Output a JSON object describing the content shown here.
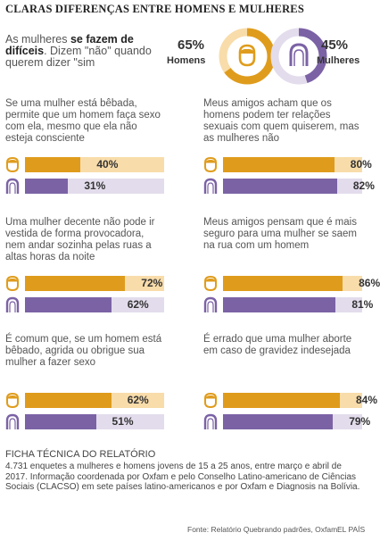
{
  "title": "CLARAS DIFERENÇAS ENTRE HOMENS E MULHERES",
  "intro": {
    "part1": "As mulheres ",
    "bold": "se fazem de difíceis",
    "part2": ". Dizem \"não\" quando querem dizer \"sim"
  },
  "summary": {
    "men": {
      "label": "Homens",
      "value": 65,
      "value_label": "65%"
    },
    "women": {
      "label": "Mulheres",
      "value": 45,
      "value_label": "45%"
    }
  },
  "colors": {
    "men": "#df9c1c",
    "men_track": "#f8dcaa",
    "women": "#7b62a5",
    "women_track": "#e3dcec"
  },
  "icons": {
    "men": "man-head-icon",
    "women": "woman-head-icon"
  },
  "chart_data": {
    "type": "bar",
    "orientation": "horizontal",
    "x_range": [
      0,
      100
    ],
    "series": [
      {
        "name": "Homens",
        "values": [
          40,
          80,
          72,
          86,
          62,
          84
        ]
      },
      {
        "name": "Mulheres",
        "values": [
          31,
          82,
          62,
          81,
          51,
          79
        ]
      }
    ],
    "questions": [
      {
        "text": "Se uma mulher está bêbada, permite que um homem faça sexo com ela, mesmo que ela não esteja consciente",
        "men": 40,
        "men_label": "40%",
        "women": 31,
        "women_label": "31%"
      },
      {
        "text": "Meus amigos acham que os homens podem ter relações sexuais com quem quiserem, mas as mulheres não",
        "men": 80,
        "men_label": "80%",
        "women": 82,
        "women_label": "82%"
      },
      {
        "text": "Uma mulher decente não pode ir vestida de forma provocadora, nem andar sozinha pelas ruas a altas horas da noite",
        "men": 72,
        "men_label": "72%",
        "women": 62,
        "women_label": "62%"
      },
      {
        "text": "Meus amigos pensam que é mais seguro para uma mulher se saem na rua com um homem",
        "men": 86,
        "men_label": "86%",
        "women": 81,
        "women_label": "81%"
      },
      {
        "text": "É comum que, se um homem está bêbado, agrida ou obrigue sua mulher a fazer sexo",
        "men": 62,
        "men_label": "62%",
        "women": 51,
        "women_label": "51%"
      },
      {
        "text": "É errado que uma mulher aborte em caso de gravidez indesejada",
        "men": 84,
        "men_label": "84%",
        "women": 79,
        "women_label": "79%"
      }
    ]
  },
  "footer": {
    "heading": "FICHA TÉCNICA DO RELATÓRIO",
    "text": "4.731 enquetes a mulheres e homens jovens de 15 a 25 anos, entre março e abril de 2017. Informação coordenada por Oxfam e pelo Conselho Latino-americano de Ciências Sociais (CLACSO) em sete países latino-americanos e por Oxfam e Diagnosis na Bolívia.",
    "source": "Fonte: Relatório Quebrando padrões, Oxfam.",
    "brand": "EL PAÍS"
  }
}
